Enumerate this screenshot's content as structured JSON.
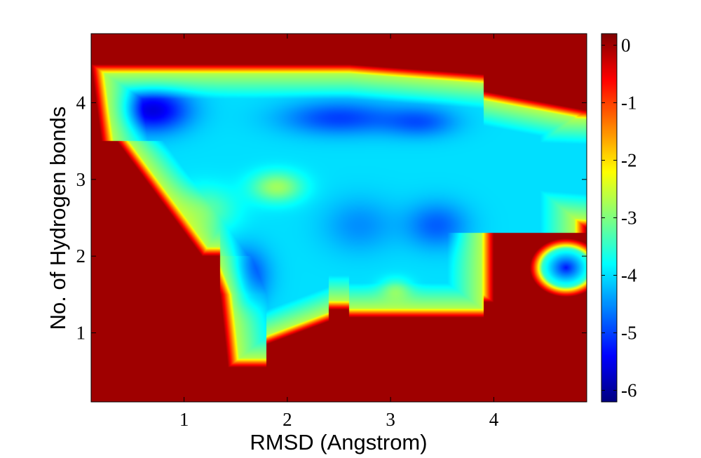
{
  "chart_data": {
    "type": "heatmap",
    "title": "",
    "xlabel": "RMSD (Angstrom)",
    "ylabel": "No. of Hydrogen bonds",
    "xlim": [
      0.1,
      4.9
    ],
    "ylim": [
      0.1,
      4.9
    ],
    "x_ticks": [
      1,
      2,
      3,
      4
    ],
    "y_ticks": [
      1,
      2,
      3,
      4
    ],
    "colormap": "jet",
    "colorbar": {
      "range": [
        -6.2,
        0.2
      ],
      "ticks": [
        0,
        -1,
        -2,
        -3,
        -4,
        -5,
        -6
      ],
      "tick_labels": [
        "0",
        "-1",
        "-2",
        "-3",
        "-4",
        "-5",
        "-6"
      ]
    },
    "background_value": 0,
    "features": [
      {
        "kind": "deep_basin",
        "x": 0.7,
        "y": 3.9,
        "value": -6.0
      },
      {
        "kind": "deep_basin",
        "x": 2.5,
        "y": 3.8,
        "value": -5.4
      },
      {
        "kind": "deep_basin",
        "x": 3.3,
        "y": 3.8,
        "value": -5.1
      },
      {
        "kind": "basin",
        "x": 1.6,
        "y": 1.8,
        "value": -5.0
      },
      {
        "kind": "basin",
        "x": 1.55,
        "y": 1.5,
        "value": -5.2
      },
      {
        "kind": "basin",
        "x": 3.4,
        "y": 2.4,
        "value": -4.8
      },
      {
        "kind": "basin",
        "x": 2.7,
        "y": 2.4,
        "value": -4.5
      },
      {
        "kind": "basin",
        "x": 4.65,
        "y": 1.9,
        "value": -5.3
      },
      {
        "kind": "shallow",
        "x": 1.8,
        "y": 2.9,
        "value": -2.8
      },
      {
        "kind": "shallow",
        "x": 4.7,
        "y": 3.3,
        "value": -4.3
      }
    ]
  }
}
